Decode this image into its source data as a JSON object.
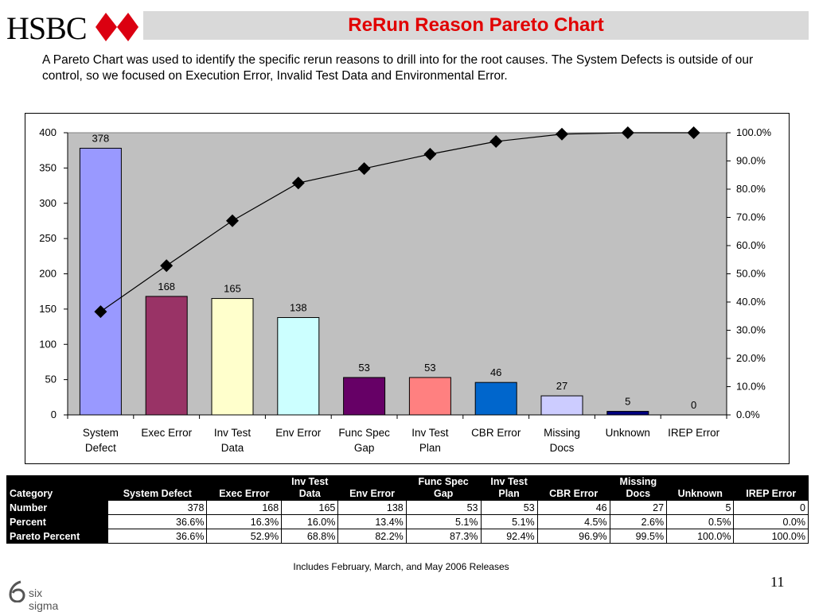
{
  "header": {
    "logo_text": "HSBC",
    "title": "ReRun Reason Pareto Chart",
    "intro": "A Pareto Chart was used to identify the specific rerun reasons to drill into for the root causes. The System Defects is outside of our control, so we focused on Execution Error, Invalid Test Data and Environmental Error."
  },
  "colors": {
    "title_red": "#e10000",
    "title_bar": "#d9d9d9",
    "plot_bg": "#c0c0c0",
    "bars": [
      "#9999ff",
      "#993366",
      "#ffffcc",
      "#ccffff",
      "#660066",
      "#ff8080",
      "#0066cc",
      "#ccccff",
      "#000080",
      "#ffffff"
    ]
  },
  "chart_data": {
    "type": "bar",
    "title": "",
    "categories": [
      [
        "System",
        "Defect"
      ],
      [
        "Exec Error"
      ],
      [
        "Inv Test",
        "Data"
      ],
      [
        "Env Error"
      ],
      [
        "Func Spec",
        "Gap"
      ],
      [
        "Inv Test",
        "Plan"
      ],
      [
        "CBR Error"
      ],
      [
        "Missing",
        "Docs"
      ],
      [
        "Unknown"
      ],
      [
        "IREP Error"
      ]
    ],
    "series": [
      {
        "type": "bar",
        "values": [
          378,
          168,
          165,
          138,
          53,
          53,
          46,
          27,
          5,
          0
        ],
        "data_labels": [
          "378",
          "168",
          "165",
          "138",
          "53",
          "53",
          "46",
          "27",
          "5",
          "0"
        ],
        "axis": "left"
      },
      {
        "type": "line",
        "values": [
          36.6,
          52.9,
          68.8,
          82.2,
          87.3,
          92.4,
          96.9,
          99.5,
          100.0,
          100.0
        ],
        "axis": "right",
        "marker": "diamond"
      }
    ],
    "y_left": {
      "min": 0,
      "max": 400,
      "ticks": [
        "0",
        "50",
        "100",
        "150",
        "200",
        "250",
        "300",
        "350",
        "400"
      ]
    },
    "y_right": {
      "min": 0,
      "max": 100,
      "ticks": [
        "0.0%",
        "10.0%",
        "20.0%",
        "30.0%",
        "40.0%",
        "50.0%",
        "60.0%",
        "70.0%",
        "80.0%",
        "90.0%",
        "100.0%"
      ]
    },
    "grid": false,
    "legend": "none"
  },
  "table": {
    "headers": [
      [
        "Category"
      ],
      [
        "System Defect"
      ],
      [
        "Exec Error"
      ],
      [
        "Inv Test",
        "Data"
      ],
      [
        "Env Error"
      ],
      [
        "Func Spec",
        "Gap"
      ],
      [
        "Inv Test",
        "Plan"
      ],
      [
        "CBR Error"
      ],
      [
        "Missing",
        "Docs"
      ],
      [
        "Unknown"
      ],
      [
        "IREP Error"
      ]
    ],
    "rows": [
      {
        "label": "Number",
        "values": [
          "378",
          "168",
          "165",
          "138",
          "53",
          "53",
          "46",
          "27",
          "5",
          "0"
        ]
      },
      {
        "label": "Percent",
        "values": [
          "36.6%",
          "16.3%",
          "16.0%",
          "13.4%",
          "5.1%",
          "5.1%",
          "4.5%",
          "2.6%",
          "0.5%",
          "0.0%"
        ]
      },
      {
        "label": "Pareto Percent",
        "values": [
          "36.6%",
          "52.9%",
          "68.8%",
          "82.2%",
          "87.3%",
          "92.4%",
          "96.9%",
          "99.5%",
          "100.0%",
          "100.0%"
        ]
      }
    ]
  },
  "footnote": "Includes February, March, and May 2006 Releases",
  "footer": {
    "logo_text": "six sigma",
    "page_number": "11"
  }
}
